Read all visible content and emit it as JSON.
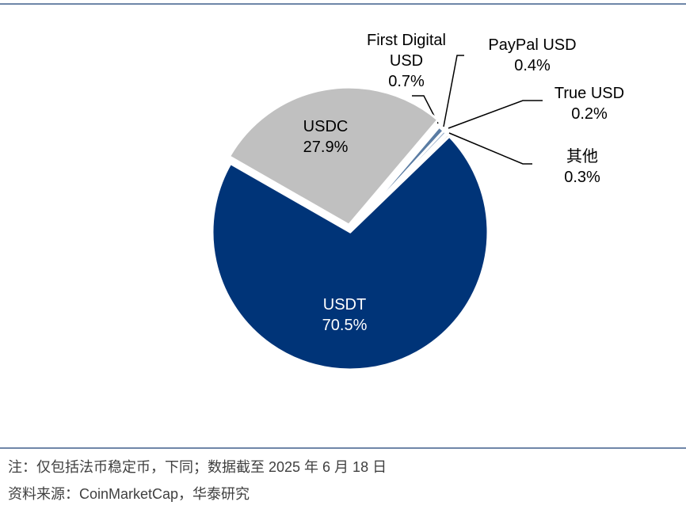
{
  "chart_data": {
    "type": "pie",
    "categories": [
      "USDT",
      "USDC",
      "First Digital USD",
      "PayPal USD",
      "True USD",
      "其他"
    ],
    "values": [
      70.5,
      27.9,
      0.7,
      0.4,
      0.2,
      0.3
    ],
    "value_labels": [
      "70.5%",
      "27.9%",
      "0.7%",
      "0.4%",
      "0.2%",
      "0.3%"
    ],
    "colors": [
      "#003478",
      "#c0c0c0",
      "#5a7ca3",
      "#9fb3cc",
      "#d9d9d9",
      "#a6a6a6"
    ],
    "note": "注：仅包括法币稳定币，下同；数据截至 2025 年 6 月 18 日",
    "source": "资料来源：CoinMarketCap，华泰研究"
  }
}
